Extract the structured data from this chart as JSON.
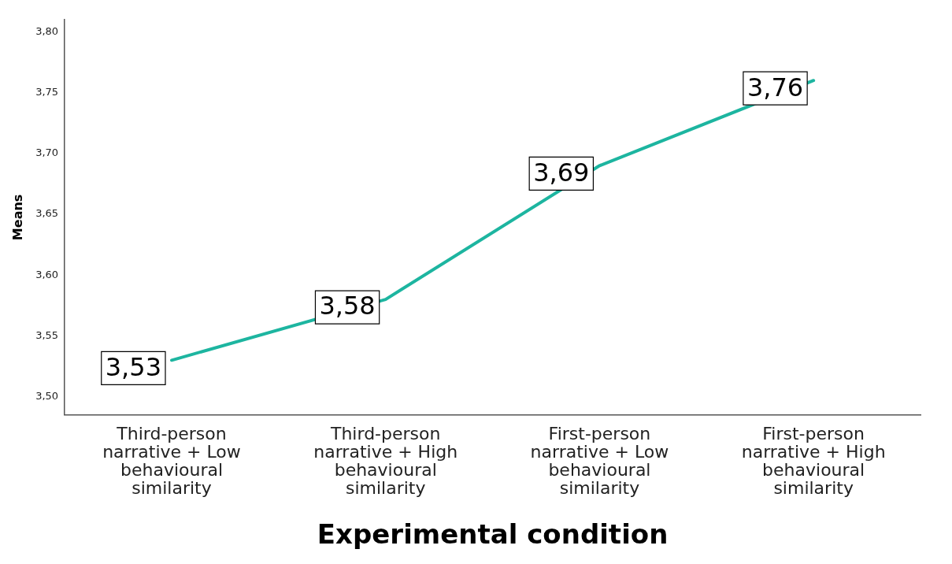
{
  "chart_data": {
    "type": "line",
    "xlabel": "Experimental condition",
    "ylabel": "Means",
    "categories": [
      "Third-person narrative + Low behavioural similarity",
      "Third-person narrative + High behavioural similarity",
      "First-person narrative + Low behavioural similarity",
      "First-person narrative + High behavioural similarity"
    ],
    "series": [
      {
        "color": "#1db5a0",
        "values": [
          3.53,
          3.58,
          3.69,
          3.76
        ],
        "value_labels": [
          "3,53",
          "3,58",
          "3,69",
          "3,76"
        ]
      }
    ],
    "ylim": [
      3.485,
      3.81
    ],
    "yticks": [
      {
        "value": 3.5,
        "label": "3,50"
      },
      {
        "value": 3.55,
        "label": "3,55"
      },
      {
        "value": 3.6,
        "label": "3,60"
      },
      {
        "value": 3.65,
        "label": "3,65"
      },
      {
        "value": 3.7,
        "label": "3,70"
      },
      {
        "value": 3.75,
        "label": "3,75"
      },
      {
        "value": 3.8,
        "label": "3,80"
      }
    ],
    "grid": false,
    "legend": false,
    "line_style": "solid"
  }
}
